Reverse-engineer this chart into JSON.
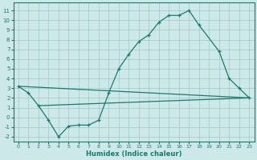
{
  "bg_color": "#cce8e8",
  "grid_color": "#a0c8c8",
  "line_color": "#1a7a6e",
  "xlabel": "Humidex (Indice chaleur)",
  "ylim": [
    -2.5,
    11.8
  ],
  "xlim": [
    -0.5,
    23.5
  ],
  "yticks": [
    -2,
    -1,
    0,
    1,
    2,
    3,
    4,
    5,
    6,
    7,
    8,
    9,
    10,
    11
  ],
  "xticks": [
    0,
    1,
    2,
    3,
    4,
    5,
    6,
    7,
    8,
    9,
    10,
    11,
    12,
    13,
    14,
    15,
    16,
    17,
    18,
    19,
    20,
    21,
    22,
    23
  ],
  "main_x": [
    0,
    1,
    2,
    3,
    4,
    5,
    6,
    7,
    8,
    9,
    10,
    11,
    12,
    13,
    14,
    15,
    16,
    17,
    18,
    20,
    21,
    22,
    23
  ],
  "main_y": [
    3.2,
    2.5,
    1.2,
    -0.3,
    -2.0,
    -0.9,
    -0.8,
    -0.8,
    -0.3,
    2.5,
    5.0,
    6.5,
    7.8,
    8.5,
    9.8,
    10.5,
    10.5,
    11.0,
    9.5,
    6.8,
    4.0,
    3.0,
    2.0
  ],
  "line1_x": [
    0,
    23
  ],
  "line1_y": [
    3.2,
    2.0
  ],
  "line2_x": [
    2,
    23
  ],
  "line2_y": [
    1.2,
    2.0
  ]
}
